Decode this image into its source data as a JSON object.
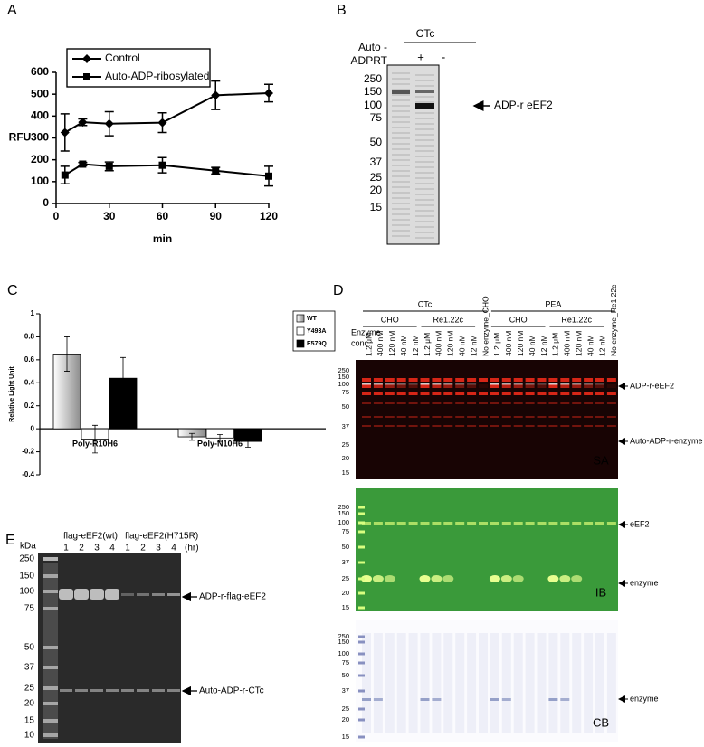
{
  "panel_labels": [
    "A",
    "B",
    "C",
    "D",
    "E"
  ],
  "chart_data": [
    {
      "type": "line",
      "xlabel": "min",
      "ylabel": "RFU",
      "x": [
        5,
        15,
        30,
        60,
        90,
        120
      ],
      "xlim": [
        0,
        120
      ],
      "xticks": [
        0,
        30,
        60,
        90,
        120
      ],
      "ylim": [
        0,
        600
      ],
      "yticks": [
        0,
        100,
        200,
        300,
        400,
        500,
        600
      ],
      "series": [
        {
          "name": "Control",
          "color": "#000000",
          "marker": "diamond",
          "values": [
            325,
            372,
            365,
            370,
            495,
            505
          ],
          "errors": [
            85,
            15,
            55,
            45,
            65,
            40
          ]
        },
        {
          "name": "Auto-ADP-ribosylated",
          "color": "#000000",
          "marker": "square",
          "values": [
            130,
            180,
            170,
            175,
            150,
            125
          ],
          "errors": [
            40,
            8,
            20,
            35,
            15,
            45
          ]
        }
      ]
    },
    {
      "type": "bar",
      "ylabel": "Relative Light Unit",
      "categories": [
        "Poly-R10H6",
        "Poly-N10H6"
      ],
      "ylim": [
        -0.4,
        1
      ],
      "yticks": [
        -0.4,
        -0.2,
        0,
        0.2,
        0.4,
        0.6,
        0.8,
        1
      ],
      "legend": "top-right",
      "series": [
        {
          "name": "WT",
          "color": "#8c8c8c",
          "gradient": true,
          "values": [
            0.65,
            -0.07
          ],
          "errors": [
            0.15,
            0.03
          ]
        },
        {
          "name": "Y493A",
          "color": "#ffffff",
          "values": [
            -0.09,
            -0.08
          ],
          "errors": [
            0.12,
            0.03
          ]
        },
        {
          "name": "E579Q",
          "color": "#000000",
          "values": [
            0.44,
            -0.11
          ],
          "errors": [
            0.18,
            0.05
          ]
        }
      ]
    }
  ],
  "panel_b": {
    "group": "CTc",
    "treatment_label": [
      "Auto -",
      "ADPRT"
    ],
    "lanes": [
      "+",
      "-"
    ],
    "markers": [
      250,
      150,
      100,
      75,
      50,
      37,
      25,
      20,
      15
    ],
    "annotation": "ADP-r eEF2"
  },
  "panel_d": {
    "row_label": [
      "Enzyme",
      "conc."
    ],
    "groups": [
      {
        "label": "CTc",
        "subgroups": [
          "CHO",
          "Re1.22c"
        ]
      },
      {
        "label": "PEA",
        "subgroups": [
          "CHO",
          "Re1.22c"
        ]
      }
    ],
    "lanes": [
      "1.2 μM",
      "400 nM",
      "120 nM",
      "40 nM",
      "12 nM",
      "1.2 μM",
      "400 nM",
      "120 nM",
      "40 nM",
      "12 nM",
      "No enzyme_CHO",
      "1.2 μM",
      "400 nM",
      "120 nM",
      "40 nM",
      "12 nM",
      "1.2 μM",
      "400 nM",
      "120 nM",
      "40 nM",
      "12 nM",
      "No enzyme_Re1.22c"
    ],
    "blots": [
      {
        "label": "SA",
        "markers": [
          250,
          150,
          100,
          75,
          50,
          37,
          25,
          20,
          15
        ],
        "annotations": [
          "ADP-r-eEF2",
          "Auto-ADP-r-enzyme"
        ]
      },
      {
        "label": "IB",
        "markers": [
          250,
          150,
          100,
          75,
          50,
          37,
          25,
          20,
          15
        ],
        "annotations": [
          "eEF2",
          "enzyme"
        ]
      },
      {
        "label": "CB",
        "markers": [
          250,
          150,
          100,
          75,
          50,
          37,
          25,
          20,
          15
        ],
        "annotations": [
          "enzyme"
        ]
      }
    ]
  },
  "panel_e": {
    "unit": "kDa",
    "groups": [
      {
        "label": "flag-eEF2(wt)",
        "lanes": [
          1,
          2,
          3,
          4
        ]
      },
      {
        "label": "flag-eEF2(H715R)",
        "lanes": [
          1,
          2,
          3,
          4
        ]
      }
    ],
    "lane_unit": "(hr)",
    "markers": [
      250,
      150,
      100,
      75,
      50,
      37,
      25,
      20,
      15,
      10
    ],
    "annotations": [
      "ADP-r-flag-eEF2",
      "Auto-ADP-r-CTc"
    ]
  }
}
